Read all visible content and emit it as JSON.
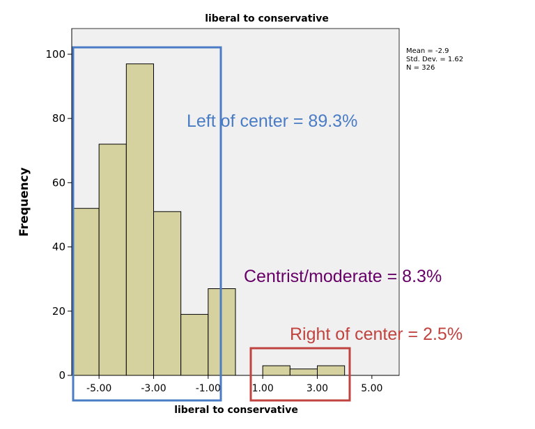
{
  "chart_data": {
    "type": "bar",
    "title": "liberal to conservative",
    "xlabel": "liberal to conservative",
    "ylabel": "Frequency",
    "bins": [
      {
        "start": -6.0,
        "end": -5.0,
        "value": 52
      },
      {
        "start": -5.0,
        "end": -4.0,
        "value": 72
      },
      {
        "start": -4.0,
        "end": -3.0,
        "value": 97
      },
      {
        "start": -3.0,
        "end": -2.0,
        "value": 51
      },
      {
        "start": -2.0,
        "end": -1.0,
        "value": 19
      },
      {
        "start": -1.0,
        "end": 0.0,
        "value": 27
      },
      {
        "start": 0.0,
        "end": 1.0,
        "value": 0
      },
      {
        "start": 1.0,
        "end": 2.0,
        "value": 3
      },
      {
        "start": 2.0,
        "end": 3.0,
        "value": 2
      },
      {
        "start": 3.0,
        "end": 4.0,
        "value": 3
      }
    ],
    "xticks": [
      "-5.00",
      "-3.00",
      "-1.00",
      "1.00",
      "3.00",
      "5.00"
    ],
    "yticks": [
      "0",
      "20",
      "40",
      "60",
      "80",
      "100"
    ],
    "xlim": [
      -6.0,
      6.0
    ],
    "ylim": [
      0,
      108
    ],
    "grid": false,
    "colors": {
      "bar_fill": "#d5d29f",
      "plot_bg": "#f0f0f0",
      "left_box": "#4a7cc5",
      "center_text": "#660066",
      "right_box": "#c0433f"
    },
    "stats": [
      "Mean = -2.9",
      "Std. Dev. = 1.62",
      "N = 326"
    ],
    "annotations": {
      "left": "Left of center = 89.3%",
      "center": "Centrist/moderate = 8.3%",
      "right": "Right of center = 2.5%"
    }
  }
}
